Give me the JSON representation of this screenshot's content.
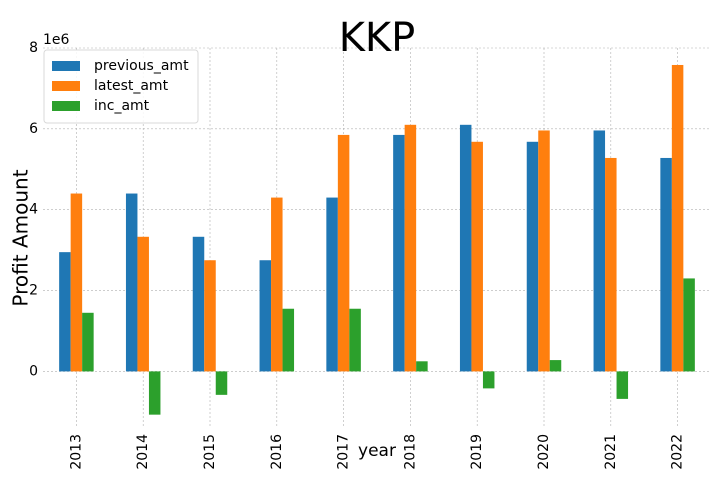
{
  "chart_data": {
    "type": "bar",
    "title": "KKP",
    "xlabel": "year",
    "ylabel": "Profit Amount",
    "y_offset_text": "1e6",
    "ylim": [
      -1400000,
      8000000
    ],
    "yticks": [
      0,
      2000000,
      4000000,
      6000000,
      8000000
    ],
    "ytick_labels": [
      "0",
      "2",
      "4",
      "6",
      "8"
    ],
    "grid": true,
    "legend_position": "top-left",
    "categories": [
      "2013",
      "2014",
      "2015",
      "2016",
      "2017",
      "2018",
      "2019",
      "2020",
      "2021",
      "2022"
    ],
    "series": [
      {
        "name": "previous_amt",
        "color": "#1f77b4",
        "values": [
          2950000,
          4400000,
          3330000,
          2750000,
          4300000,
          5850000,
          6100000,
          5680000,
          5960000,
          5280000
        ]
      },
      {
        "name": "latest_amt",
        "color": "#ff7f0e",
        "values": [
          4400000,
          3330000,
          2750000,
          4300000,
          5850000,
          6100000,
          5680000,
          5960000,
          5280000,
          7580000
        ]
      },
      {
        "name": "inc_amt",
        "color": "#2ca02c",
        "values": [
          1450000,
          -1070000,
          -580000,
          1550000,
          1550000,
          250000,
          -420000,
          280000,
          -680000,
          2300000
        ]
      }
    ]
  }
}
